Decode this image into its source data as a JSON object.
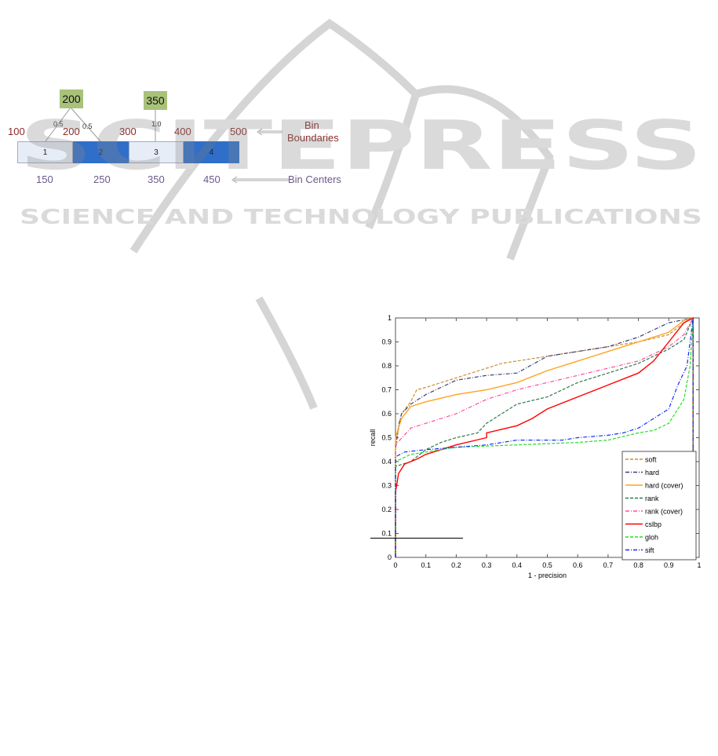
{
  "diagram": {
    "values": [
      "200",
      "350"
    ],
    "weights": [
      "0.5",
      "0.5",
      "1.0"
    ],
    "bins": [
      "1",
      "2",
      "3",
      "4"
    ],
    "boundaries": [
      "100",
      "200",
      "300",
      "400",
      "500"
    ],
    "centers": [
      "150",
      "250",
      "350",
      "450"
    ],
    "boundaries_label_line1": "Bin",
    "boundaries_label_line2": "Boundaries",
    "centers_label": "Bin Centers",
    "colors": {
      "value_box": "#a9c27a",
      "bin_light": "#e6edf7",
      "bin_dark": "#2f6fca",
      "boundary_text": "#8b2a2a",
      "center_text": "#6a5a8a"
    }
  },
  "watermark": {
    "brand": "SCITEPRESS",
    "tagline": "SCIENCE AND TECHNOLOGY PUBLICATIONS"
  },
  "chart_data": {
    "type": "line",
    "xlabel": "1 - precision",
    "ylabel": "recall",
    "xlim": [
      0,
      1
    ],
    "ylim": [
      0,
      1
    ],
    "xticks": [
      "0",
      "0.1",
      "0.2",
      "0.3",
      "0.4",
      "0.5",
      "0.6",
      "0.7",
      "0.8",
      "0.9",
      "1"
    ],
    "yticks": [
      "0",
      "0.1",
      "0.2",
      "0.3",
      "0.4",
      "0.5",
      "0.6",
      "0.7",
      "0.8",
      "0.9",
      "1"
    ],
    "grid": false,
    "legend_placement": "bottom-right",
    "series": [
      {
        "name": "soft",
        "color": "#c8903a",
        "style": "dashed",
        "x": [
          0,
          0.005,
          0.02,
          0.05,
          0.07,
          0.1,
          0.2,
          0.3,
          0.35,
          0.5,
          0.6,
          0.7,
          0.8,
          0.9,
          0.95,
          0.98
        ],
        "y": [
          0.45,
          0.5,
          0.6,
          0.65,
          0.7,
          0.71,
          0.75,
          0.79,
          0.81,
          0.84,
          0.86,
          0.88,
          0.9,
          0.93,
          0.98,
          1
        ]
      },
      {
        "name": "hard",
        "color": "#3a3f7a",
        "style": "dashdot",
        "x": [
          0,
          0.01,
          0.02,
          0.05,
          0.1,
          0.2,
          0.3,
          0.4,
          0.5,
          0.6,
          0.7,
          0.8,
          0.9,
          0.98
        ],
        "y": [
          0.45,
          0.55,
          0.6,
          0.64,
          0.68,
          0.74,
          0.76,
          0.77,
          0.84,
          0.86,
          0.88,
          0.92,
          0.98,
          1
        ]
      },
      {
        "name": "hard (cover)",
        "color": "#ffa21f",
        "style": "solid",
        "x": [
          0,
          0.02,
          0.05,
          0.1,
          0.2,
          0.3,
          0.4,
          0.5,
          0.6,
          0.7,
          0.8,
          0.9,
          0.95,
          0.98
        ],
        "y": [
          0.5,
          0.58,
          0.63,
          0.65,
          0.68,
          0.7,
          0.73,
          0.78,
          0.82,
          0.86,
          0.9,
          0.94,
          0.99,
          1
        ]
      },
      {
        "name": "rank",
        "color": "#2e7a4a",
        "style": "dashed",
        "x": [
          0,
          0.05,
          0.1,
          0.15,
          0.2,
          0.27,
          0.3,
          0.35,
          0.4,
          0.5,
          0.6,
          0.7,
          0.8,
          0.9,
          0.95,
          0.98
        ],
        "y": [
          0.38,
          0.4,
          0.45,
          0.48,
          0.5,
          0.52,
          0.56,
          0.6,
          0.64,
          0.67,
          0.73,
          0.77,
          0.81,
          0.87,
          0.91,
          1
        ]
      },
      {
        "name": "rank (cover)",
        "color": "#ff4fa0",
        "style": "dashdot",
        "x": [
          0,
          0.05,
          0.1,
          0.2,
          0.3,
          0.4,
          0.5,
          0.6,
          0.7,
          0.8,
          0.9,
          0.95,
          0.98
        ],
        "y": [
          0.47,
          0.54,
          0.56,
          0.6,
          0.66,
          0.7,
          0.73,
          0.76,
          0.79,
          0.82,
          0.88,
          0.93,
          1
        ]
      },
      {
        "name": "cslbp",
        "color": "#ff0000",
        "style": "solid",
        "x": [
          0,
          0.01,
          0.03,
          0.07,
          0.1,
          0.15,
          0.2,
          0.3,
          0.3,
          0.4,
          0.45,
          0.5,
          0.6,
          0.7,
          0.8,
          0.85,
          0.9,
          0.95,
          0.98
        ],
        "y": [
          0.27,
          0.35,
          0.39,
          0.41,
          0.43,
          0.45,
          0.47,
          0.5,
          0.52,
          0.55,
          0.58,
          0.62,
          0.67,
          0.72,
          0.77,
          0.82,
          0.9,
          0.98,
          1
        ]
      },
      {
        "name": "gloh",
        "color": "#22e022",
        "style": "dashed",
        "x": [
          0,
          0.05,
          0.1,
          0.2,
          0.4,
          0.6,
          0.7,
          0.8,
          0.85,
          0.9,
          0.95,
          0.97,
          0.98
        ],
        "y": [
          0.4,
          0.43,
          0.44,
          0.46,
          0.47,
          0.48,
          0.49,
          0.52,
          0.53,
          0.56,
          0.66,
          0.8,
          1
        ]
      },
      {
        "name": "sift",
        "color": "#1030ff",
        "style": "dashdot",
        "x": [
          0,
          0.03,
          0.1,
          0.2,
          0.3,
          0.4,
          0.55,
          0.6,
          0.7,
          0.75,
          0.8,
          0.85,
          0.9,
          0.93,
          0.96,
          0.98
        ],
        "y": [
          0.42,
          0.44,
          0.45,
          0.46,
          0.47,
          0.49,
          0.49,
          0.5,
          0.51,
          0.52,
          0.54,
          0.58,
          0.62,
          0.72,
          0.8,
          1
        ]
      }
    ]
  }
}
